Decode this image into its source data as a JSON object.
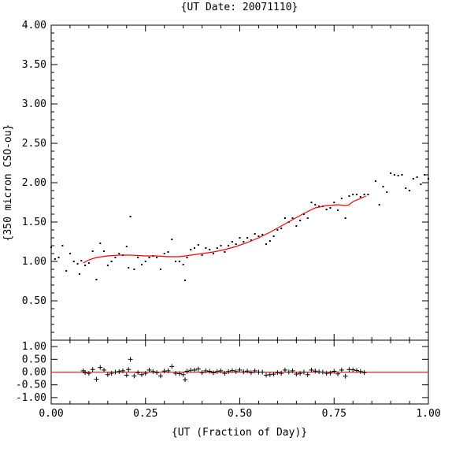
{
  "chart_data": {
    "type": "scatter",
    "title": "{UT Date: 20071110}",
    "xlabel": "{UT (Fraction of Day)}",
    "ylabel": "{350 micron CSO-ou}",
    "xlim": [
      0,
      1
    ],
    "ylim": [
      0,
      4
    ],
    "resid_ylim": [
      -1.25,
      1.25
    ],
    "x_ticks": [
      "0.00",
      "0.25",
      "0.50",
      "0.75",
      "1.00"
    ],
    "y_ticks": [
      "0.50",
      "1.00",
      "1.50",
      "2.00",
      "2.50",
      "3.00",
      "3.50",
      "4.00"
    ],
    "resid_ticks": [
      "1.00",
      "0.50",
      "0.00",
      "-0.50",
      "-1.00"
    ],
    "fit_color": "#ff0000",
    "point_color": "#000000",
    "data_points": [
      [
        0.0,
        1.18
      ],
      [
        0.01,
        1.03
      ],
      [
        0.02,
        1.05
      ],
      [
        0.03,
        1.2
      ],
      [
        0.04,
        0.88
      ],
      [
        0.05,
        1.1
      ],
      [
        0.06,
        1.0
      ],
      [
        0.07,
        0.97
      ],
      [
        0.075,
        0.84
      ],
      [
        0.08,
        1.01
      ],
      [
        0.09,
        0.95
      ],
      [
        0.1,
        0.98
      ],
      [
        0.11,
        1.13
      ],
      [
        0.12,
        0.77
      ],
      [
        0.13,
        1.23
      ],
      [
        0.14,
        1.13
      ],
      [
        0.15,
        0.95
      ],
      [
        0.16,
        1.0
      ],
      [
        0.17,
        1.05
      ],
      [
        0.18,
        1.1
      ],
      [
        0.19,
        1.08
      ],
      [
        0.2,
        1.19
      ],
      [
        0.205,
        0.92
      ],
      [
        0.21,
        1.57
      ],
      [
        0.22,
        0.9
      ],
      [
        0.23,
        1.05
      ],
      [
        0.24,
        0.96
      ],
      [
        0.25,
        1.0
      ],
      [
        0.26,
        1.05
      ],
      [
        0.27,
        1.07
      ],
      [
        0.28,
        1.05
      ],
      [
        0.29,
        0.9
      ],
      [
        0.3,
        1.1
      ],
      [
        0.31,
        1.12
      ],
      [
        0.32,
        1.28
      ],
      [
        0.33,
        1.0
      ],
      [
        0.34,
        1.0
      ],
      [
        0.35,
        0.96
      ],
      [
        0.355,
        0.76
      ],
      [
        0.36,
        1.05
      ],
      [
        0.37,
        1.15
      ],
      [
        0.38,
        1.17
      ],
      [
        0.39,
        1.21
      ],
      [
        0.4,
        1.08
      ],
      [
        0.41,
        1.17
      ],
      [
        0.42,
        1.15
      ],
      [
        0.43,
        1.1
      ],
      [
        0.44,
        1.17
      ],
      [
        0.45,
        1.2
      ],
      [
        0.46,
        1.12
      ],
      [
        0.47,
        1.2
      ],
      [
        0.48,
        1.25
      ],
      [
        0.49,
        1.22
      ],
      [
        0.5,
        1.3
      ],
      [
        0.51,
        1.25
      ],
      [
        0.52,
        1.3
      ],
      [
        0.53,
        1.27
      ],
      [
        0.54,
        1.35
      ],
      [
        0.55,
        1.32
      ],
      [
        0.56,
        1.34
      ],
      [
        0.57,
        1.22
      ],
      [
        0.58,
        1.26
      ],
      [
        0.59,
        1.32
      ],
      [
        0.6,
        1.4
      ],
      [
        0.61,
        1.42
      ],
      [
        0.62,
        1.55
      ],
      [
        0.63,
        1.5
      ],
      [
        0.64,
        1.55
      ],
      [
        0.65,
        1.45
      ],
      [
        0.66,
        1.52
      ],
      [
        0.67,
        1.6
      ],
      [
        0.68,
        1.55
      ],
      [
        0.69,
        1.75
      ],
      [
        0.7,
        1.72
      ],
      [
        0.71,
        1.7
      ],
      [
        0.72,
        1.7
      ],
      [
        0.73,
        1.66
      ],
      [
        0.74,
        1.68
      ],
      [
        0.75,
        1.75
      ],
      [
        0.76,
        1.65
      ],
      [
        0.77,
        1.8
      ],
      [
        0.78,
        1.55
      ],
      [
        0.79,
        1.83
      ],
      [
        0.8,
        1.85
      ],
      [
        0.81,
        1.85
      ],
      [
        0.82,
        1.82
      ],
      [
        0.83,
        1.85
      ],
      [
        0.84,
        1.85
      ],
      [
        0.86,
        2.02
      ],
      [
        0.87,
        1.72
      ],
      [
        0.88,
        1.95
      ],
      [
        0.89,
        1.88
      ],
      [
        0.9,
        2.12
      ],
      [
        0.91,
        2.1
      ],
      [
        0.92,
        2.09
      ],
      [
        0.93,
        2.1
      ],
      [
        0.94,
        1.93
      ],
      [
        0.95,
        1.9
      ],
      [
        0.96,
        2.05
      ],
      [
        0.97,
        2.07
      ],
      [
        0.98,
        1.98
      ],
      [
        0.99,
        2.1
      ],
      [
        1.0,
        2.05
      ]
    ],
    "fit_curve": [
      [
        0.085,
        0.98
      ],
      [
        0.1,
        1.02
      ],
      [
        0.12,
        1.05
      ],
      [
        0.15,
        1.07
      ],
      [
        0.18,
        1.08
      ],
      [
        0.21,
        1.08
      ],
      [
        0.25,
        1.07
      ],
      [
        0.28,
        1.07
      ],
      [
        0.31,
        1.06
      ],
      [
        0.34,
        1.06
      ],
      [
        0.37,
        1.08
      ],
      [
        0.4,
        1.1
      ],
      [
        0.43,
        1.12
      ],
      [
        0.46,
        1.15
      ],
      [
        0.49,
        1.19
      ],
      [
        0.52,
        1.24
      ],
      [
        0.55,
        1.3
      ],
      [
        0.58,
        1.37
      ],
      [
        0.61,
        1.45
      ],
      [
        0.64,
        1.53
      ],
      [
        0.67,
        1.61
      ],
      [
        0.7,
        1.68
      ],
      [
        0.73,
        1.71
      ],
      [
        0.76,
        1.72
      ],
      [
        0.78,
        1.71
      ],
      [
        0.79,
        1.72
      ],
      [
        0.8,
        1.76
      ],
      [
        0.82,
        1.8
      ],
      [
        0.835,
        1.83
      ]
    ],
    "residuals": [
      [
        0.085,
        0.05
      ],
      [
        0.09,
        -0.02
      ],
      [
        0.1,
        -0.05
      ],
      [
        0.11,
        0.1
      ],
      [
        0.12,
        -0.28
      ],
      [
        0.13,
        0.18
      ],
      [
        0.14,
        0.08
      ],
      [
        0.15,
        -0.1
      ],
      [
        0.16,
        -0.05
      ],
      [
        0.17,
        0.0
      ],
      [
        0.18,
        0.02
      ],
      [
        0.19,
        0.05
      ],
      [
        0.2,
        -0.12
      ],
      [
        0.205,
        0.1
      ],
      [
        0.21,
        0.5
      ],
      [
        0.22,
        -0.15
      ],
      [
        0.23,
        -0.02
      ],
      [
        0.24,
        -0.1
      ],
      [
        0.25,
        -0.05
      ],
      [
        0.26,
        0.08
      ],
      [
        0.27,
        0.02
      ],
      [
        0.28,
        -0.02
      ],
      [
        0.29,
        -0.15
      ],
      [
        0.3,
        0.04
      ],
      [
        0.31,
        0.05
      ],
      [
        0.32,
        0.22
      ],
      [
        0.33,
        -0.05
      ],
      [
        0.34,
        -0.06
      ],
      [
        0.35,
        -0.1
      ],
      [
        0.355,
        -0.3
      ],
      [
        0.36,
        0.03
      ],
      [
        0.37,
        0.07
      ],
      [
        0.38,
        0.08
      ],
      [
        0.39,
        0.12
      ],
      [
        0.4,
        -0.02
      ],
      [
        0.41,
        0.05
      ],
      [
        0.42,
        0.03
      ],
      [
        0.43,
        -0.03
      ],
      [
        0.44,
        0.02
      ],
      [
        0.45,
        0.05
      ],
      [
        0.46,
        -0.05
      ],
      [
        0.47,
        0.02
      ],
      [
        0.48,
        0.06
      ],
      [
        0.49,
        0.02
      ],
      [
        0.5,
        0.08
      ],
      [
        0.51,
        0.01
      ],
      [
        0.52,
        0.04
      ],
      [
        0.53,
        -0.02
      ],
      [
        0.54,
        0.05
      ],
      [
        0.55,
        0.0
      ],
      [
        0.56,
        0.0
      ],
      [
        0.57,
        -0.12
      ],
      [
        0.58,
        -0.1
      ],
      [
        0.59,
        -0.08
      ],
      [
        0.6,
        -0.02
      ],
      [
        0.61,
        -0.05
      ],
      [
        0.62,
        0.08
      ],
      [
        0.63,
        0.0
      ],
      [
        0.64,
        0.05
      ],
      [
        0.65,
        -0.08
      ],
      [
        0.66,
        -0.05
      ],
      [
        0.67,
        0.0
      ],
      [
        0.68,
        -0.1
      ],
      [
        0.69,
        0.08
      ],
      [
        0.7,
        0.04
      ],
      [
        0.71,
        0.01
      ],
      [
        0.72,
        0.0
      ],
      [
        0.73,
        -0.05
      ],
      [
        0.74,
        -0.04
      ],
      [
        0.75,
        0.03
      ],
      [
        0.76,
        -0.07
      ],
      [
        0.77,
        0.08
      ],
      [
        0.78,
        -0.16
      ],
      [
        0.79,
        0.1
      ],
      [
        0.8,
        0.09
      ],
      [
        0.81,
        0.06
      ],
      [
        0.82,
        0.02
      ],
      [
        0.83,
        -0.02
      ]
    ]
  }
}
